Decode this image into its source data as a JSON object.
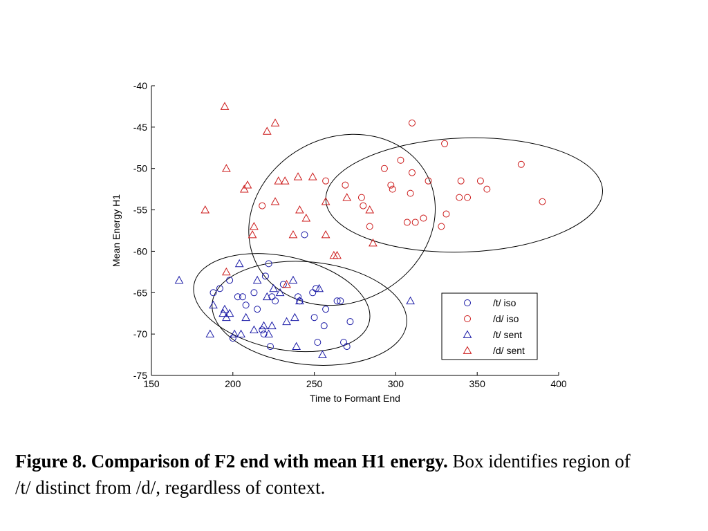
{
  "chart_data": {
    "type": "scatter",
    "xlabel": "Time to Formant End",
    "ylabel": "Mean Energy H1",
    "xlim": [
      150,
      400
    ],
    "ylim": [
      -75,
      -40
    ],
    "xticks": [
      "150",
      "200",
      "250",
      "300",
      "350",
      "400"
    ],
    "yticks": [
      "-40",
      "-45",
      "-50",
      "-55",
      "-60",
      "-65",
      "-70",
      "-75"
    ],
    "grid": false,
    "legend_position": "bottom-right",
    "series": [
      {
        "name": "/t/ iso",
        "marker": "circle",
        "color": "#1a1aa6",
        "points": [
          [
            188,
            -65
          ],
          [
            192,
            -64.5
          ],
          [
            198,
            -63.5
          ],
          [
            200,
            -70.5
          ],
          [
            203,
            -65.5
          ],
          [
            206,
            -65.5
          ],
          [
            208,
            -66.5
          ],
          [
            213,
            -65
          ],
          [
            215,
            -67
          ],
          [
            218,
            -69.5
          ],
          [
            219,
            -70
          ],
          [
            220,
            -63
          ],
          [
            222,
            -61.5
          ],
          [
            223,
            -71.5
          ],
          [
            224,
            -65.5
          ],
          [
            226,
            -66
          ],
          [
            231,
            -64
          ],
          [
            240,
            -65.5
          ],
          [
            241,
            -66
          ],
          [
            244,
            -58
          ],
          [
            249,
            -65
          ],
          [
            250,
            -68
          ],
          [
            251,
            -64.5
          ],
          [
            252,
            -71
          ],
          [
            256,
            -69
          ],
          [
            257,
            -67
          ],
          [
            264,
            -66
          ],
          [
            266,
            -66
          ],
          [
            268,
            -71
          ],
          [
            270,
            -71.5
          ],
          [
            272,
            -68.5
          ]
        ]
      },
      {
        "name": "/d/ iso",
        "marker": "circle",
        "color": "#cc1a1a",
        "points": [
          [
            218,
            -54.5
          ],
          [
            257,
            -51.5
          ],
          [
            269,
            -52
          ],
          [
            279,
            -53.5
          ],
          [
            280,
            -54.5
          ],
          [
            284,
            -57
          ],
          [
            293,
            -50
          ],
          [
            297,
            -52
          ],
          [
            298,
            -52.5
          ],
          [
            303,
            -49
          ],
          [
            307,
            -56.5
          ],
          [
            309,
            -53
          ],
          [
            310,
            -50.5
          ],
          [
            310,
            -44.5
          ],
          [
            312,
            -56.5
          ],
          [
            317,
            -56
          ],
          [
            320,
            -51.5
          ],
          [
            328,
            -57
          ],
          [
            330,
            -47
          ],
          [
            331,
            -55.5
          ],
          [
            339,
            -53.5
          ],
          [
            340,
            -51.5
          ],
          [
            344,
            -53.5
          ],
          [
            352,
            -51.5
          ],
          [
            356,
            -52.5
          ],
          [
            377,
            -49.5
          ],
          [
            390,
            -54
          ]
        ]
      },
      {
        "name": "/t/ sent",
        "marker": "triangle",
        "color": "#1a1aa6",
        "points": [
          [
            167,
            -63.5
          ],
          [
            186,
            -70
          ],
          [
            188,
            -66.5
          ],
          [
            194,
            -67.5
          ],
          [
            195,
            -67
          ],
          [
            196,
            -68
          ],
          [
            198,
            -67.5
          ],
          [
            201,
            -70
          ],
          [
            204,
            -61.5
          ],
          [
            205,
            -70
          ],
          [
            208,
            -68
          ],
          [
            213,
            -69.5
          ],
          [
            215,
            -63.5
          ],
          [
            219,
            -69
          ],
          [
            221,
            -65.5
          ],
          [
            222,
            -70
          ],
          [
            224,
            -69
          ],
          [
            225,
            -64.5
          ],
          [
            229,
            -65
          ],
          [
            233,
            -68.5
          ],
          [
            237,
            -63.5
          ],
          [
            238,
            -68
          ],
          [
            239,
            -71.5
          ],
          [
            241,
            -66
          ],
          [
            253,
            -64.5
          ],
          [
            255,
            -72.5
          ],
          [
            309,
            -66
          ]
        ]
      },
      {
        "name": "/d/ sent",
        "marker": "triangle",
        "color": "#cc1a1a",
        "points": [
          [
            183,
            -55
          ],
          [
            195,
            -42.5
          ],
          [
            196,
            -50
          ],
          [
            207,
            -52.5
          ],
          [
            209,
            -52
          ],
          [
            212,
            -58
          ],
          [
            213,
            -57
          ],
          [
            221,
            -45.5
          ],
          [
            226,
            -44.5
          ],
          [
            226,
            -54
          ],
          [
            228,
            -51.5
          ],
          [
            232,
            -51.5
          ],
          [
            233,
            -64
          ],
          [
            237,
            -58
          ],
          [
            240,
            -51
          ],
          [
            241,
            -55
          ],
          [
            245,
            -56
          ],
          [
            249,
            -51
          ],
          [
            257,
            -58
          ],
          [
            257,
            -54
          ],
          [
            262,
            -60.5
          ],
          [
            264,
            -60.5
          ],
          [
            270,
            -53.5
          ],
          [
            284,
            -55
          ],
          [
            286,
            -59
          ],
          [
            196,
            -62.5
          ]
        ]
      }
    ],
    "ellipses": [
      {
        "cx": 267,
        "cy": -56.2,
        "rx": 118,
        "ry": 101,
        "angle": -28,
        "stroke": "#000000"
      },
      {
        "cx": 342,
        "cy": -53.2,
        "rx": 170,
        "ry": 70,
        "angle": -2,
        "stroke": "#000000"
      },
      {
        "cx": 247,
        "cy": -67.5,
        "rx": 120,
        "ry": 63,
        "angle": 6,
        "stroke": "#000000"
      },
      {
        "cx": 230,
        "cy": -66.2,
        "rx": 110,
        "ry": 57,
        "angle": 12,
        "stroke": "#000000"
      }
    ]
  },
  "caption": {
    "bold": "Figure 8. Comparison of F2 end with mean H1 energy.",
    "text": " Box identifies region of /t/ distinct from /d/, regardless of context."
  }
}
